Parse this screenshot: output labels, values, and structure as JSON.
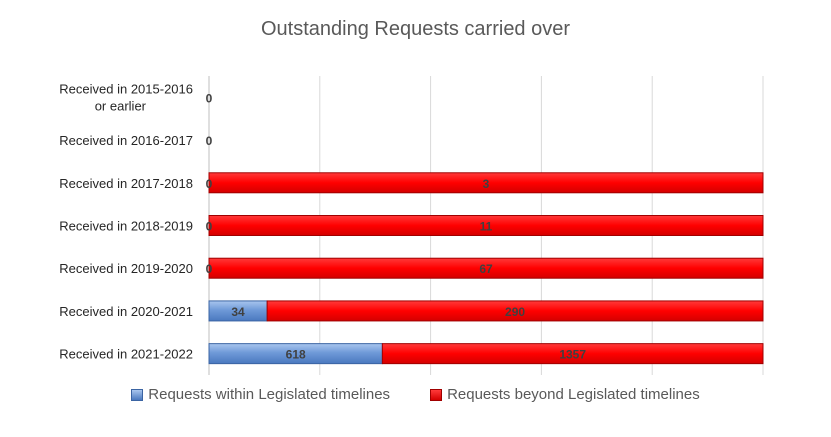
{
  "chart_data": {
    "type": "bar",
    "orientation": "horizontal",
    "stacked": "100%",
    "title": "Outstanding Requests carried over",
    "xlabel": "",
    "ylabel": "",
    "grid": true,
    "legend_position": "bottom",
    "categories": [
      [
        "Received in 2015-2016",
        "or earlier"
      ],
      [
        "Received in 2016-2017"
      ],
      [
        "Received in 2017-2018"
      ],
      [
        "Received in 2018-2019"
      ],
      [
        "Received in 2019-2020"
      ],
      [
        "Received in 2020-2021"
      ],
      [
        "Received in 2021-2022"
      ]
    ],
    "series": [
      {
        "name": "Requests within Legislated timelines",
        "color": "#5b8fd4",
        "values": [
          0,
          0,
          0,
          0,
          0,
          34,
          618
        ]
      },
      {
        "name": "Requests beyond Legislated timelines",
        "color": "#ff0000",
        "values": [
          null,
          null,
          3,
          11,
          67,
          290,
          1357
        ]
      }
    ]
  }
}
